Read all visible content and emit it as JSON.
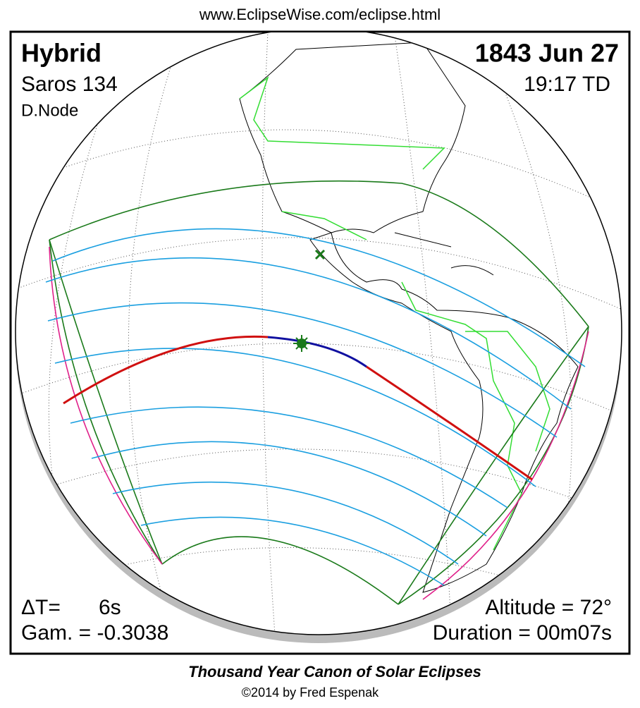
{
  "header": {
    "url": "www.EclipseWise.com/eclipse.html"
  },
  "eclipse": {
    "type": "Hybrid",
    "date": "1843 Jun 27",
    "saros": "Saros 134",
    "time": "19:17 TD",
    "node": "D.Node",
    "delta_t_label": "ΔT=",
    "delta_t": "6s",
    "gamma": "Gam. = -0.3038",
    "altitude": "Altitude = 72°",
    "duration": "Duration = 00m07s"
  },
  "footer": {
    "title": "Thousand Year Canon of Solar Eclipses",
    "copyright": "©2014 by Fred Espenak"
  }
}
